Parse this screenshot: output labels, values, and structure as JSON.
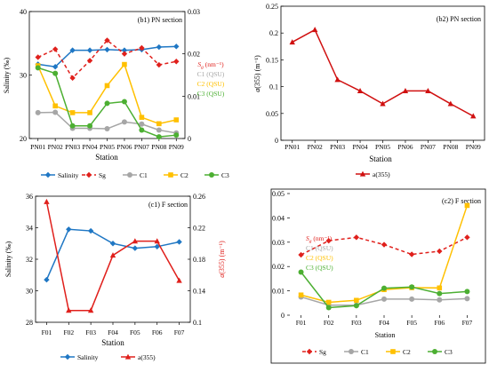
{
  "chart_data": [
    {
      "id": "b1",
      "type": "line",
      "title": "(b1) PN section",
      "xlabel": "Station",
      "ylabel": "Salinity (‰)",
      "categories": [
        "PN01",
        "PN02",
        "PN03",
        "PN04",
        "PN05",
        "PN06",
        "PN07",
        "PN08",
        "PN09"
      ],
      "ylim": [
        20,
        40
      ],
      "yticks": [
        "20",
        "30",
        "40"
      ],
      "y2lim": [
        0,
        0.03
      ],
      "y2ticks": [
        "0",
        "0.01",
        "0.02",
        "0.03"
      ],
      "grid": false,
      "legend_position": "bottom",
      "inline_labels": [
        {
          "text": "S_g (nm⁻¹)",
          "color": "#e0201c"
        },
        {
          "text": "C1 (QSU)",
          "color": "#a6a6a6"
        },
        {
          "text": "C2 (QSU)",
          "color": "#ffc000"
        },
        {
          "text": "C3 (QSU)",
          "color": "#4caf32"
        }
      ],
      "series": [
        {
          "name": "Salinity",
          "axis": "left",
          "color": "#1f77c4",
          "dash": "",
          "marker": "diamond",
          "values": [
            31.7,
            31.3,
            33.9,
            33.9,
            34.0,
            33.9,
            34.0,
            34.4,
            34.5
          ]
        },
        {
          "name": "Sg",
          "axis": "right",
          "color": "#e0201c",
          "dash": "4,3",
          "marker": "diamond",
          "values": [
            0.0192,
            0.0211,
            0.0143,
            0.0184,
            0.0232,
            0.02,
            0.0214,
            0.0174,
            0.0182
          ]
        },
        {
          "name": "C1",
          "axis": "right",
          "color": "#a6a6a6",
          "dash": "",
          "marker": "circle",
          "values": [
            0.0061,
            0.0062,
            0.0024,
            0.0024,
            0.0023,
            0.0039,
            0.0034,
            0.002,
            0.0013
          ]
        },
        {
          "name": "C2",
          "axis": "right",
          "color": "#ffc000",
          "dash": "",
          "marker": "square",
          "values": [
            0.0172,
            0.0077,
            0.0061,
            0.0061,
            0.0125,
            0.0175,
            0.005,
            0.0035,
            0.0044
          ]
        },
        {
          "name": "C3",
          "axis": "right",
          "color": "#4caf32",
          "dash": "",
          "marker": "circle",
          "values": [
            0.0167,
            0.0154,
            0.003,
            0.003,
            0.0083,
            0.0087,
            0.002,
            0.0004,
            0.0008
          ]
        }
      ]
    },
    {
      "id": "b2",
      "type": "line",
      "title": "(b2) PN section",
      "xlabel": "Station",
      "ylabel": "a(355) (m⁻¹)",
      "categories": [
        "PN01",
        "PN02",
        "PN03",
        "PN04",
        "PN05",
        "PN06",
        "PN07",
        "PN08",
        "PN09"
      ],
      "ylim": [
        0,
        0.25
      ],
      "yticks": [
        "0",
        "0.05",
        "0.1",
        "0.15",
        "0.2",
        "0.25"
      ],
      "grid": false,
      "legend_position": "bottom",
      "series": [
        {
          "name": "a(355)",
          "axis": "left",
          "color": "#d01010",
          "dash": "",
          "marker": "triangle",
          "values": [
            0.183,
            0.206,
            0.113,
            0.092,
            0.068,
            0.092,
            0.092,
            0.068,
            0.045
          ]
        }
      ]
    },
    {
      "id": "c1",
      "type": "line",
      "title": "(c1) F section",
      "xlabel": "Station",
      "ylabel": "Salinity (‰)",
      "y2label": "a(355) (m⁻¹)",
      "categories": [
        "F01",
        "F02",
        "F03",
        "F04",
        "F05",
        "F06",
        "F07"
      ],
      "ylim": [
        28,
        36
      ],
      "yticks": [
        "28",
        "30",
        "32",
        "34",
        "36"
      ],
      "y2lim": [
        0.1,
        0.26
      ],
      "y2ticks": [
        "0.1",
        "0.14",
        "0.18",
        "0.22",
        "0.26"
      ],
      "grid": false,
      "legend_position": "bottom",
      "series": [
        {
          "name": "Salinity",
          "axis": "left",
          "color": "#1f77c4",
          "dash": "",
          "marker": "diamond",
          "values": [
            30.7,
            33.9,
            33.8,
            33.0,
            32.7,
            32.8,
            33.1
          ]
        },
        {
          "name": "a(355)",
          "axis": "right",
          "color": "#e0201c",
          "dash": "",
          "marker": "triangle",
          "values": [
            0.253,
            0.115,
            0.115,
            0.185,
            0.203,
            0.203,
            0.153
          ]
        }
      ]
    },
    {
      "id": "c2",
      "type": "line",
      "title": "(c2) F section",
      "xlabel": "Station",
      "categories": [
        "F01",
        "F02",
        "F03",
        "F04",
        "F05",
        "F06",
        "F07"
      ],
      "ylim": [
        0,
        0.05
      ],
      "yticks": [
        "0",
        "0.01",
        "0.02",
        "0.03",
        "0.04",
        "0.05"
      ],
      "grid": false,
      "legend_position": "bottom",
      "inline_labels": [
        {
          "text": "S_g (nm⁻¹)",
          "color": "#e0201c"
        },
        {
          "text": "C1 (QSU)",
          "color": "#a6a6a6"
        },
        {
          "text": "C2 (QSU)",
          "color": "#ffc000"
        },
        {
          "text": "C3 (QSU)",
          "color": "#4caf32"
        }
      ],
      "series": [
        {
          "name": "Sg",
          "axis": "left",
          "color": "#e0201c",
          "dash": "4,3",
          "marker": "diamond",
          "values": [
            0.0248,
            0.0306,
            0.032,
            0.029,
            0.025,
            0.0263,
            0.032
          ]
        },
        {
          "name": "C1",
          "axis": "left",
          "color": "#a6a6a6",
          "dash": "",
          "marker": "circle",
          "values": [
            0.0075,
            0.0041,
            0.0041,
            0.0066,
            0.0066,
            0.0063,
            0.0068
          ]
        },
        {
          "name": "C2",
          "axis": "left",
          "color": "#ffc000",
          "dash": "",
          "marker": "square",
          "values": [
            0.0083,
            0.0053,
            0.0061,
            0.0105,
            0.0113,
            0.0112,
            0.0451
          ]
        },
        {
          "name": "C3",
          "axis": "left",
          "color": "#4caf32",
          "dash": "",
          "marker": "circle",
          "values": [
            0.0177,
            0.0031,
            0.0039,
            0.0111,
            0.0116,
            0.0089,
            0.0097
          ]
        }
      ]
    }
  ]
}
